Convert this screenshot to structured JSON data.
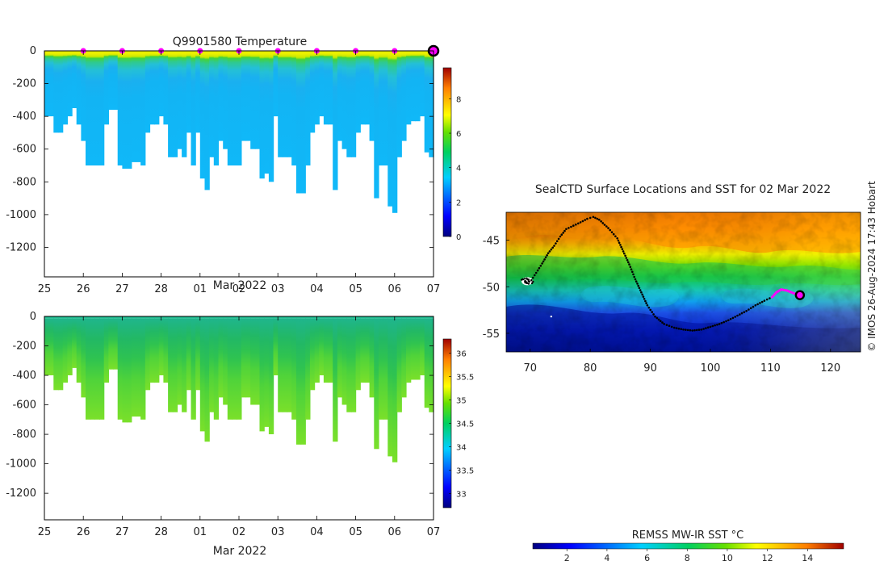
{
  "chart_data": [
    {
      "type": "heatmap",
      "name": "temperature-section",
      "title": "Q9901580  Temperature",
      "xlabel": "Mar 2022",
      "ylabel": "",
      "x_tick_labels": [
        "25",
        "26",
        "27",
        "28",
        "01",
        "02",
        "03",
        "04",
        "05",
        "06",
        "07"
      ],
      "xlim": [
        0,
        10
      ],
      "ylim": [
        -1380,
        0
      ],
      "y_ticks": [
        0,
        -200,
        -400,
        -600,
        -800,
        -1000,
        -1200
      ],
      "colorbar": {
        "min": 0,
        "max": 9.8,
        "ticks": [
          0,
          2,
          4,
          6,
          8
        ]
      },
      "surface_markers_day": [
        1,
        2,
        3,
        4,
        5,
        6,
        7,
        8,
        9
      ],
      "current_marker_day": 10,
      "profile_bottom_depths": [
        -400,
        -400,
        -500,
        -500,
        -450,
        -400,
        -350,
        -450,
        -550,
        -700,
        -700,
        -700,
        -700,
        -450,
        -360,
        -360,
        -700,
        -720,
        -720,
        -680,
        -680,
        -700,
        -500,
        -450,
        -450,
        -400,
        -450,
        -650,
        -650,
        -600,
        -650,
        -500,
        -700,
        -500,
        -780,
        -850,
        -650,
        -700,
        -550,
        -600,
        -700,
        -700,
        -700,
        -550,
        -550,
        -600,
        -600,
        -780,
        -750,
        -800,
        -400,
        -650,
        -650,
        -650,
        -700,
        -870,
        -870,
        -700,
        -500,
        -450,
        -400,
        -450,
        -450,
        -850,
        -550,
        -600,
        -650,
        -650,
        -500,
        -450,
        -450,
        -550,
        -900,
        -700,
        -700,
        -950,
        -990,
        -650,
        -550,
        -450,
        -430,
        -430,
        -400,
        -620,
        -650
      ]
    },
    {
      "type": "heatmap",
      "name": "salinity-section",
      "title": "",
      "xlabel": "Mar 2022",
      "ylabel": "",
      "x_tick_labels": [
        "25",
        "26",
        "27",
        "28",
        "01",
        "02",
        "03",
        "04",
        "05",
        "06",
        "07"
      ],
      "xlim": [
        0,
        10
      ],
      "ylim": [
        -1380,
        0
      ],
      "y_ticks": [
        0,
        -200,
        -400,
        -600,
        -800,
        -1000,
        -1200
      ],
      "colorbar": {
        "min": 32.7,
        "max": 36.3,
        "ticks": [
          33,
          33.5,
          34,
          34.5,
          35,
          35.5,
          36
        ]
      }
    },
    {
      "type": "map",
      "name": "sst-map",
      "title": "SealCTD Surface Locations and SST for 02 Mar 2022",
      "x_tick_labels": [
        "70",
        "80",
        "90",
        "100",
        "110",
        "120"
      ],
      "y_tick_labels": [
        "-45",
        "-50",
        "-55"
      ],
      "xlim": [
        66,
        125
      ],
      "ylim": [
        -57,
        -42
      ],
      "track": [
        [
          68.8,
          -49.2
        ],
        [
          69.5,
          -49.6
        ],
        [
          70.2,
          -49.3
        ],
        [
          71,
          -48.5
        ],
        [
          72,
          -47.5
        ],
        [
          73,
          -46.4
        ],
        [
          74,
          -45.6
        ],
        [
          75,
          -44.6
        ],
        [
          76,
          -43.8
        ],
        [
          78,
          -43.2
        ],
        [
          79.5,
          -42.7
        ],
        [
          80.5,
          -42.5
        ],
        [
          81.5,
          -42.8
        ],
        [
          83,
          -43.7
        ],
        [
          84.5,
          -44.8
        ],
        [
          85.5,
          -46.2
        ],
        [
          86.5,
          -47.6
        ],
        [
          87.5,
          -49.2
        ],
        [
          88.5,
          -50.6
        ],
        [
          89.5,
          -52
        ],
        [
          90.8,
          -53.2
        ],
        [
          92.3,
          -54
        ],
        [
          94,
          -54.4
        ],
        [
          95.5,
          -54.6
        ],
        [
          97,
          -54.7
        ],
        [
          98.5,
          -54.6
        ],
        [
          100,
          -54.3
        ],
        [
          101.5,
          -54
        ],
        [
          103,
          -53.6
        ],
        [
          104.5,
          -53.1
        ],
        [
          106,
          -52.6
        ],
        [
          107.5,
          -52
        ],
        [
          109,
          -51.5
        ],
        [
          110.3,
          -51.1
        ]
      ],
      "recent_track": [
        [
          110.3,
          -51.1
        ],
        [
          111,
          -50.6
        ],
        [
          111.8,
          -50.3
        ],
        [
          112.7,
          -50.4
        ],
        [
          113.5,
          -50.6
        ],
        [
          114.3,
          -50.8
        ],
        [
          114.9,
          -50.9
        ]
      ],
      "current_position": [
        114.9,
        -50.9
      ],
      "deployment_cluster": [
        69.5,
        -49.4
      ],
      "colorbar_label": "REMSS MW-IR SST °C",
      "colorbar": {
        "min": 0.3,
        "max": 15.8,
        "ticks": [
          2,
          4,
          6,
          8,
          10,
          12,
          14
        ]
      },
      "credit": "© IMOS 26-Aug-2024 17:43 Hobart"
    }
  ]
}
